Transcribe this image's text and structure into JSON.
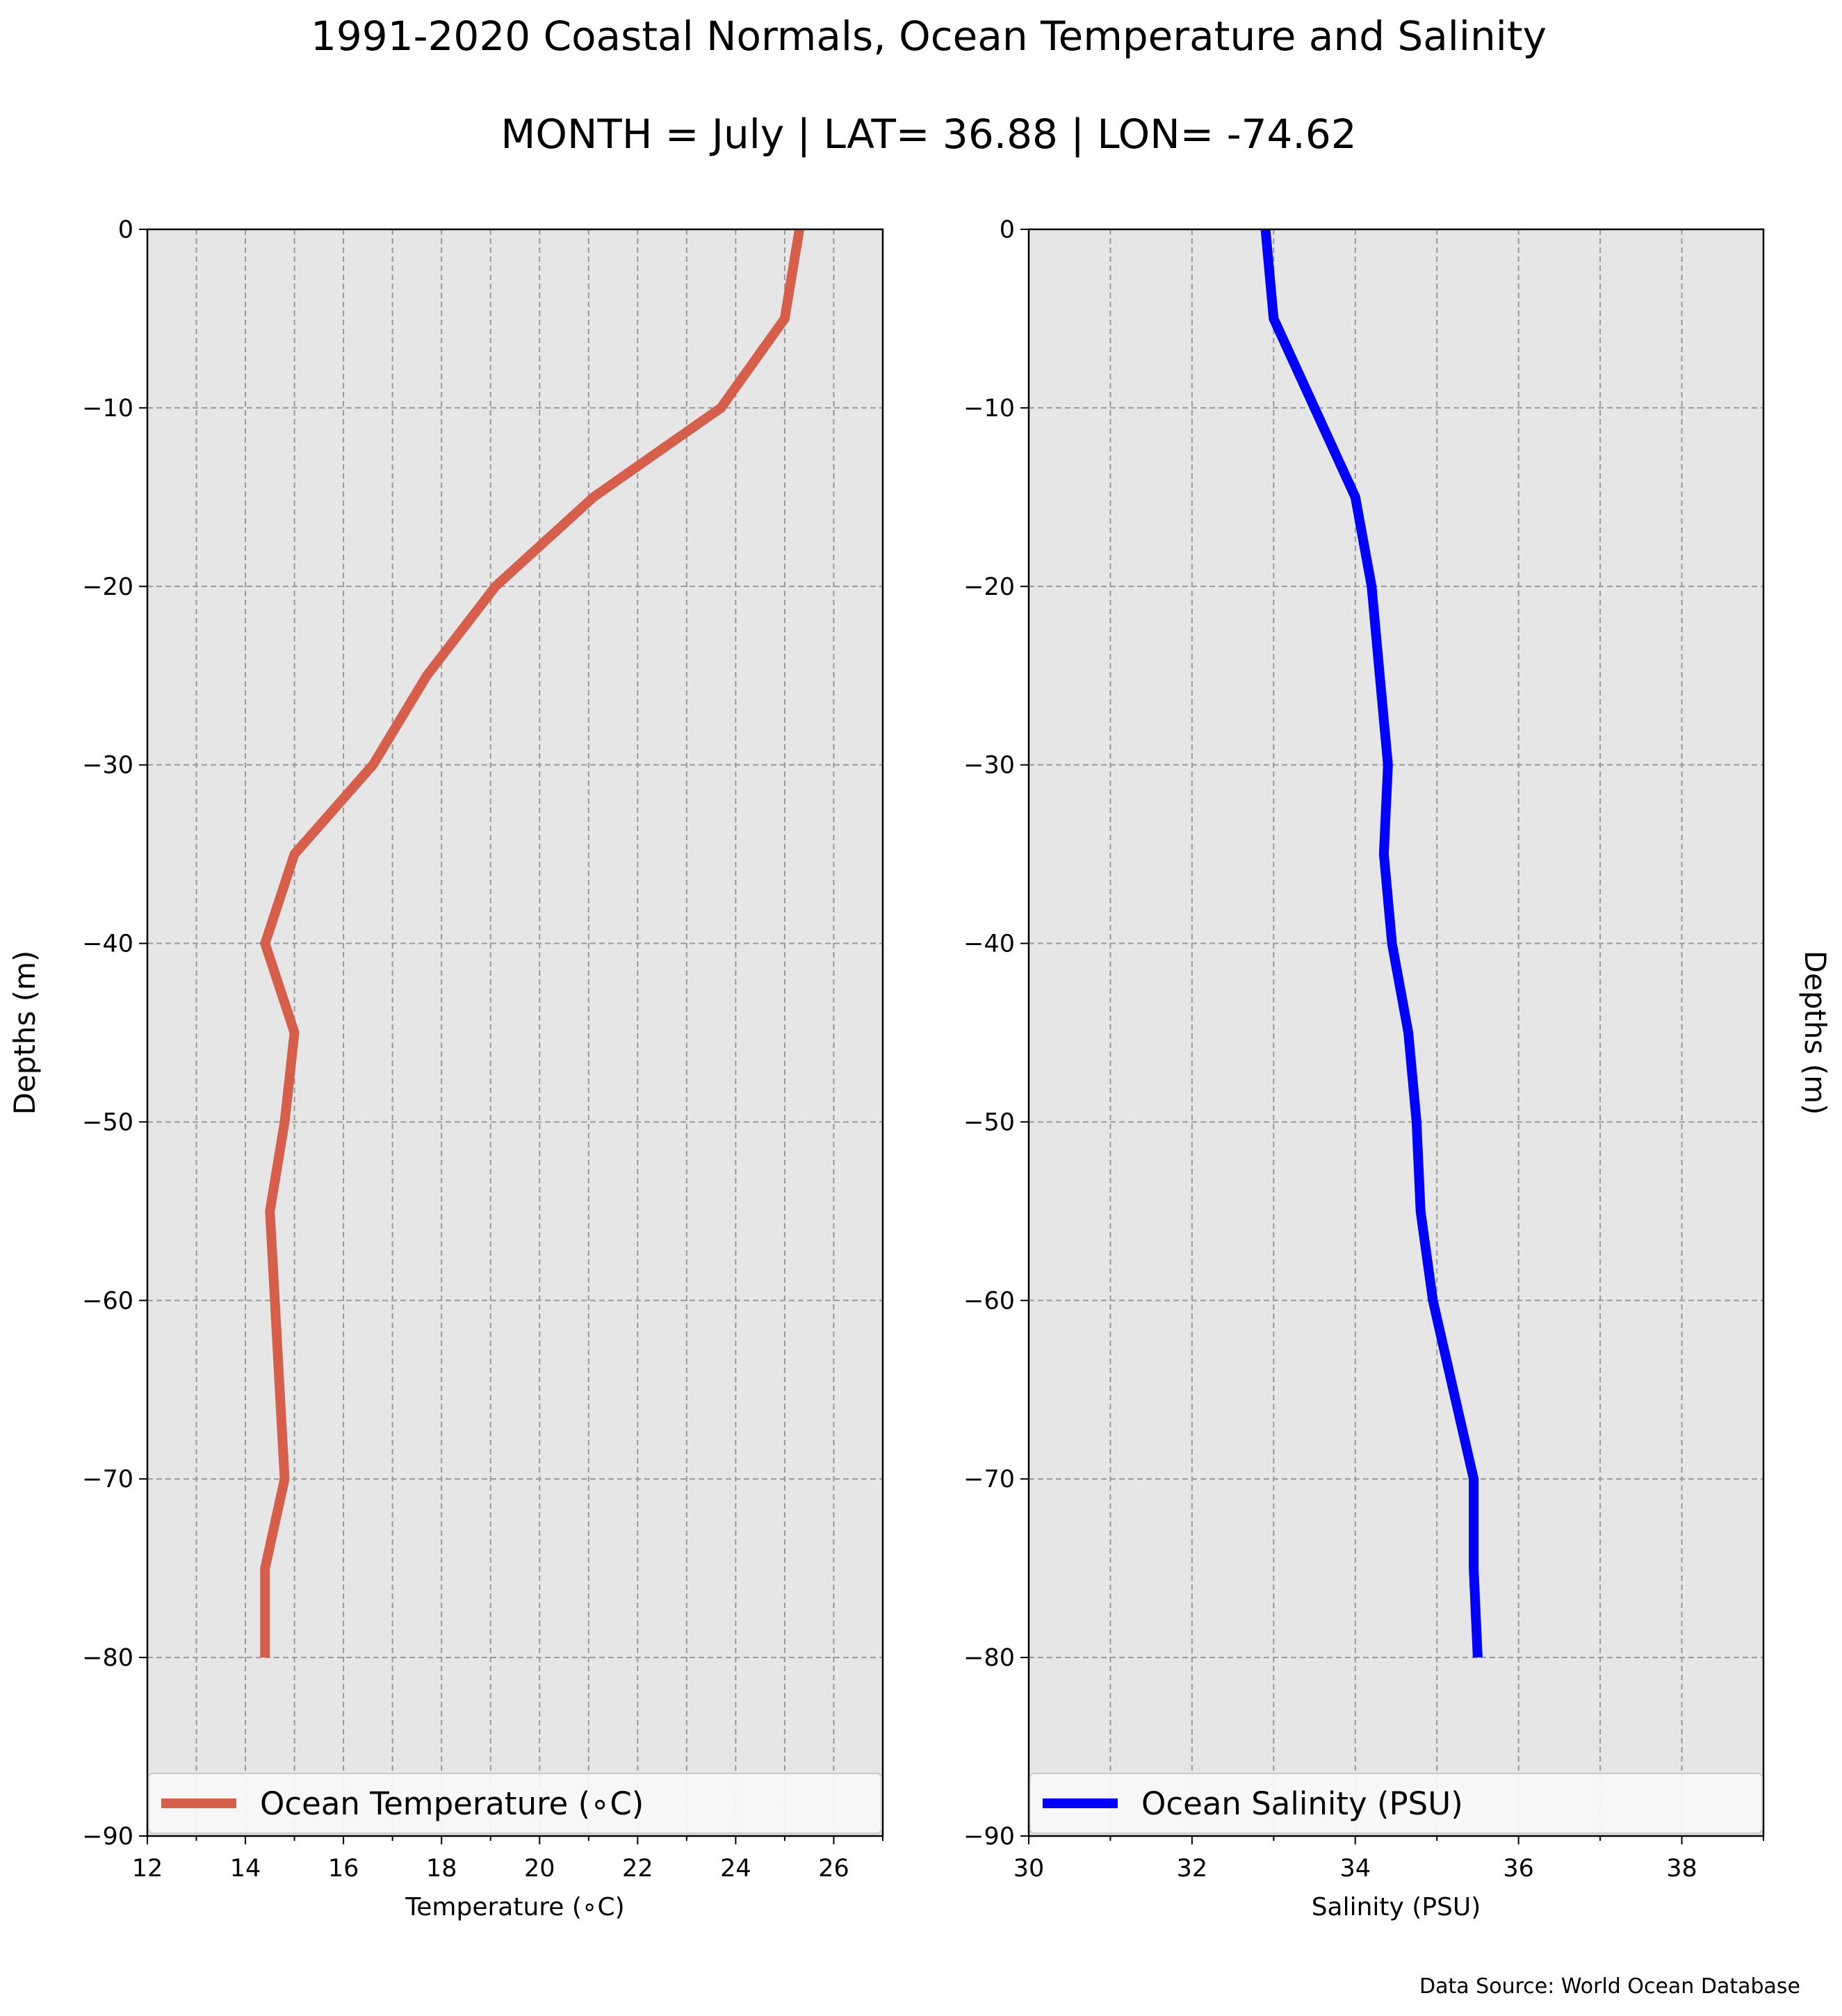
{
  "title": "1991-2020 Coastal Normals, Ocean Temperature and Salinity",
  "subtitle": "MONTH = July | LAT= 36.88 | LON= -74.62",
  "source_note": "Data Source: World Ocean Database",
  "colors": {
    "axes_background": "#e6e6e6",
    "grid": "#999999",
    "temperature": "#d65f4c",
    "salinity": "#0000ff",
    "legend_background": "#f8f8f8",
    "legend_border": "#cccccc"
  },
  "chart_data": [
    {
      "type": "line",
      "xlabel": "Temperature ($^\\circ$C)",
      "xlabel_text": "Temperature (∘C)",
      "ylabel": "Depths (m)",
      "xlim": [
        12,
        27
      ],
      "ylim": [
        -90,
        0
      ],
      "xticks": [
        12,
        14,
        16,
        18,
        20,
        22,
        24,
        26
      ],
      "yticks": [
        0,
        -10,
        -20,
        -30,
        -40,
        -50,
        -60,
        -70,
        -80,
        -90
      ],
      "ytick_labels": [
        "0",
        "−10",
        "−20",
        "−30",
        "−40",
        "−50",
        "−60",
        "−70",
        "−80",
        "−90"
      ],
      "grid": true,
      "legend_position": "lower",
      "series": [
        {
          "name": "Ocean Temperature (∘C)",
          "color": "#d65f4c",
          "x": [
            25.3,
            25.0,
            23.7,
            21.1,
            19.1,
            17.7,
            16.6,
            15.0,
            14.4,
            15.0,
            14.8,
            14.5,
            14.6,
            14.7,
            14.8,
            14.4,
            14.4
          ],
          "y": [
            0,
            -5,
            -10,
            -15,
            -20,
            -25,
            -30,
            -35,
            -40,
            -45,
            -50,
            -55,
            -60,
            -65,
            -70,
            -75,
            -80
          ]
        }
      ]
    },
    {
      "type": "line",
      "xlabel": "Salinity (PSU)",
      "ylabel": "Depths (m)",
      "ylabel_side": "right",
      "xlim": [
        30,
        39
      ],
      "ylim": [
        -90,
        0
      ],
      "xticks": [
        30,
        32,
        34,
        36,
        38
      ],
      "yticks": [
        0,
        -10,
        -20,
        -30,
        -40,
        -50,
        -60,
        -70,
        -80,
        -90
      ],
      "ytick_labels": [
        "0",
        "−10",
        "−20",
        "−30",
        "−40",
        "−50",
        "−60",
        "−70",
        "−80",
        "−90"
      ],
      "grid": true,
      "legend_position": "lower",
      "series": [
        {
          "name": "Ocean Salinity (PSU)",
          "color": "#0000ff",
          "x": [
            32.9,
            33.0,
            33.5,
            34.0,
            34.2,
            34.3,
            34.4,
            34.35,
            34.45,
            34.65,
            34.75,
            34.8,
            34.95,
            35.2,
            35.45,
            35.45,
            35.5
          ],
          "y": [
            0,
            -5,
            -10,
            -15,
            -20,
            -25,
            -30,
            -35,
            -40,
            -45,
            -50,
            -55,
            -60,
            -65,
            -70,
            -75,
            -80
          ]
        }
      ]
    }
  ]
}
